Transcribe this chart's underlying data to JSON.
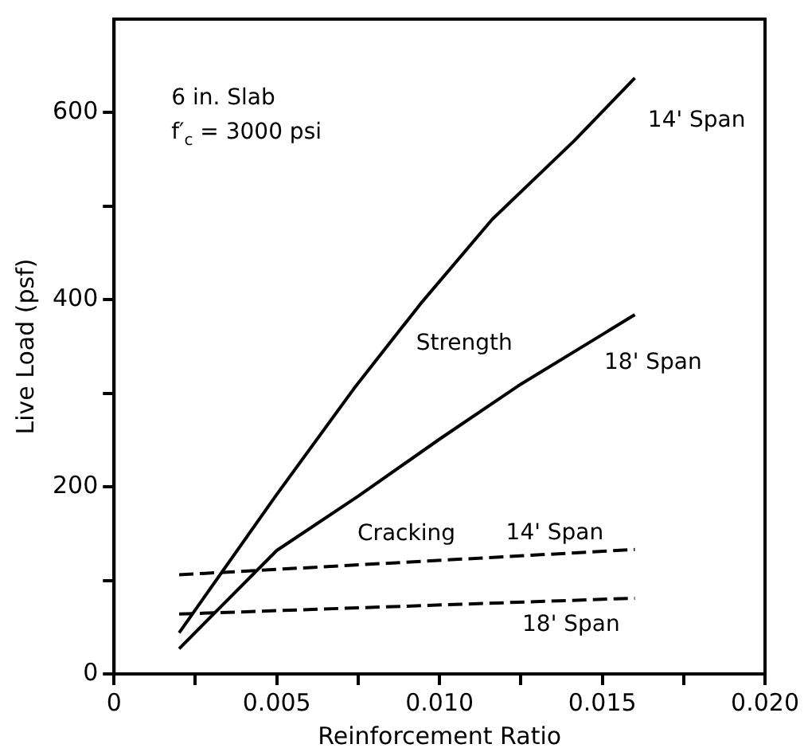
{
  "chart_data": {
    "type": "line",
    "xlabel": "Reinforcement Ratio",
    "ylabel": "Live Load (psf)",
    "xlim": [
      0,
      0.02
    ],
    "xticks": [
      0,
      {
        "value": 0.0025,
        "label": null
      },
      {
        "value": 0.005,
        "label": "0.005"
      },
      {
        "value": 0.0075,
        "label": null
      },
      {
        "value": 0.01,
        "label": "0.010"
      },
      {
        "value": 0.0125,
        "label": null
      },
      {
        "value": 0.015,
        "label": "0.015"
      },
      {
        "value": 0.0175,
        "label": null
      },
      {
        "value": 0.02,
        "label": "0.020"
      }
    ],
    "ylim": [
      0,
      700
    ],
    "yticks": [
      0,
      {
        "value": 100,
        "label": null
      },
      200,
      {
        "value": 300,
        "label": null
      },
      400,
      {
        "value": 500,
        "label": null
      },
      600
    ],
    "grid": false,
    "legend": false,
    "marker": "none",
    "series": [
      {
        "color": "#000000",
        "line_style": "solid",
        "x": [
          0.002,
          0.005,
          0.00737,
          0.0094,
          0.01162,
          0.01414,
          0.016
        ],
        "values": [
          44,
          192,
          305,
          395,
          486,
          570,
          637
        ]
      },
      {
        "color": "#000000",
        "line_style": "solid",
        "x": [
          0.002,
          0.005,
          0.0075,
          0.01,
          0.01242,
          0.016
        ],
        "values": [
          27,
          132,
          190,
          251,
          308,
          384
        ]
      },
      {
        "color": "#000000",
        "line_style": "dashed",
        "x": [
          0.002,
          0.016
        ],
        "values": [
          106,
          133
        ]
      },
      {
        "color": "#000000",
        "line_style": "dashed",
        "x": [
          0.002,
          0.016
        ],
        "values": [
          64,
          81
        ]
      }
    ],
    "annotations": [
      "6 in. Slab",
      "f′$_{c}$ = 3000 psi",
      "14' Span",
      "18' Span",
      "Strength",
      "Cracking",
      "14' Span",
      "18' Span"
    ]
  }
}
